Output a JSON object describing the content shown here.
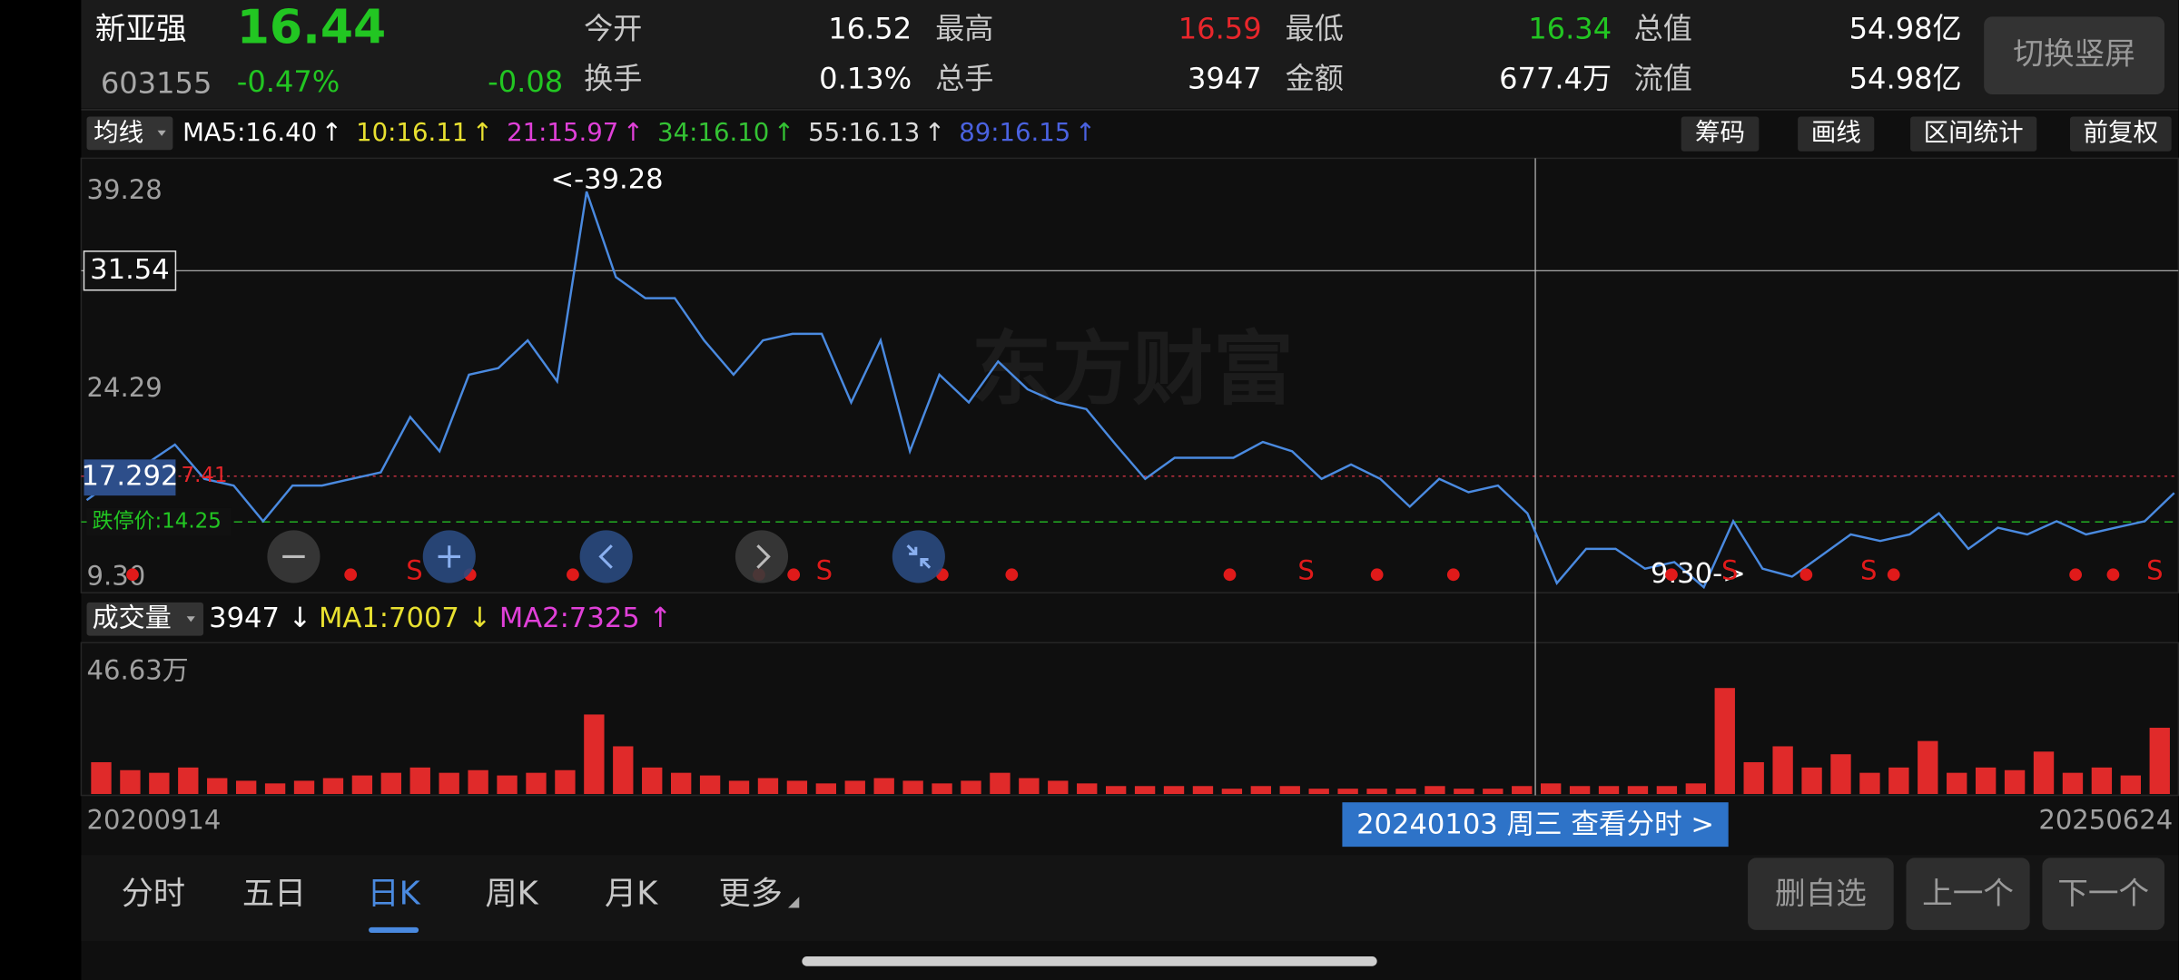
{
  "header": {
    "name": "新亚强",
    "price": "16.44",
    "code": "603155",
    "change_pct": "-0.47%",
    "change": "-0.08",
    "quote_color": "#22c622",
    "stats": [
      {
        "label": "今开",
        "value": "16.52",
        "color": "#ffffff"
      },
      {
        "label": "最高",
        "value": "16.59",
        "color": "#e8262b"
      },
      {
        "label": "最低",
        "value": "16.34",
        "color": "#22c622"
      },
      {
        "label": "总值",
        "value": "54.98亿",
        "color": "#ffffff"
      },
      {
        "label": "换手",
        "value": "0.13%",
        "color": "#ffffff"
      },
      {
        "label": "总手",
        "value": "3947",
        "color": "#ffffff"
      },
      {
        "label": "金额",
        "value": "677.4万",
        "color": "#ffffff"
      },
      {
        "label": "流值",
        "value": "54.98亿",
        "color": "#ffffff"
      }
    ],
    "orientation_button": "切换竖屏"
  },
  "indicator_bar": {
    "selector": "均线",
    "ma": [
      {
        "label": "MA5:16.40",
        "arrow": "↑",
        "color": "#ffffff"
      },
      {
        "label": "10:16.11",
        "arrow": "↑",
        "color": "#e8e030"
      },
      {
        "label": "21:15.97",
        "arrow": "↑",
        "color": "#e040d8"
      },
      {
        "label": "34:16.10",
        "arrow": "↑",
        "color": "#34c234"
      },
      {
        "label": "55:16.13",
        "arrow": "↑",
        "color": "#dddddd"
      },
      {
        "label": "89:16.15",
        "arrow": "↑",
        "color": "#4a62e0"
      }
    ],
    "tools": [
      "筹码",
      "画线",
      "区间统计",
      "前复权"
    ]
  },
  "chart_data": [
    {
      "type": "line",
      "color": "#4a8ae0",
      "watermark": "东方财富",
      "values": [
        15.9,
        17.5,
        18.6,
        20.1,
        17.5,
        17.0,
        14.3,
        17.0,
        17.0,
        17.5,
        18.0,
        22.2,
        19.6,
        25.4,
        25.9,
        28.0,
        24.9,
        39.28,
        32.8,
        31.2,
        31.2,
        28.0,
        25.4,
        28.0,
        28.5,
        28.5,
        23.3,
        28.0,
        19.6,
        25.4,
        23.3,
        26.4,
        24.3,
        23.3,
        22.8,
        20.1,
        17.5,
        19.1,
        19.1,
        19.1,
        20.3,
        19.6,
        17.5,
        18.6,
        17.5,
        15.4,
        17.5,
        16.5,
        17.0,
        14.9,
        9.6,
        12.2,
        12.2,
        10.7,
        11.2,
        9.3,
        14.3,
        10.7,
        10.1,
        11.7,
        13.3,
        12.8,
        13.3,
        14.9,
        12.2,
        13.8,
        13.3,
        14.3,
        13.3,
        13.8,
        14.3,
        16.44
      ],
      "ylim": [
        9.3,
        39.28
      ],
      "yticks": [
        39.28,
        24.29,
        {
          "value": 9.3,
          "label": "9.30"
        }
      ],
      "grid": false,
      "annotations": {
        "max": "<-39.28",
        "min": "9.30->"
      },
      "crosshair": {
        "price": "31.54",
        "line_price": "17.292",
        "limit_up": "7.41",
        "limit_down": "跌停价:14.25"
      },
      "signal_label": "S"
    },
    {
      "type": "bar",
      "color": "#e02a2a",
      "legend": {
        "selector": "成交量",
        "current": "3947 ↓",
        "ma1": "MA1:7007 ↓",
        "ma2": "MA2:7325 ↑"
      },
      "values": [
        12,
        9,
        8,
        10,
        6,
        5,
        4,
        5,
        6,
        7,
        8,
        10,
        8,
        9,
        7,
        8,
        9,
        30,
        18,
        10,
        8,
        7,
        5,
        6,
        5,
        4,
        5,
        6,
        5,
        4,
        5,
        8,
        6,
        5,
        4,
        3,
        3,
        3,
        3,
        2,
        3,
        3,
        2,
        2,
        2,
        2,
        3,
        2,
        2,
        3,
        4,
        3,
        3,
        3,
        3,
        4,
        40,
        12,
        18,
        10,
        15,
        8,
        10,
        20,
        8,
        10,
        9,
        16,
        8,
        10,
        7,
        25
      ],
      "ylim": [
        0,
        46.63
      ],
      "yticks": [
        {
          "value": 46.63,
          "label": "46.63万"
        }
      ],
      "x_start": "20200914",
      "x_end": "20250624",
      "crosshair_date": "20240103 周三 查看分时 >"
    }
  ],
  "tabs": {
    "items": [
      "分时",
      "五日",
      "日K",
      "周K",
      "月K",
      "更多"
    ],
    "active": 2
  },
  "buttons": [
    "删自选",
    "上一个",
    "下一个"
  ]
}
